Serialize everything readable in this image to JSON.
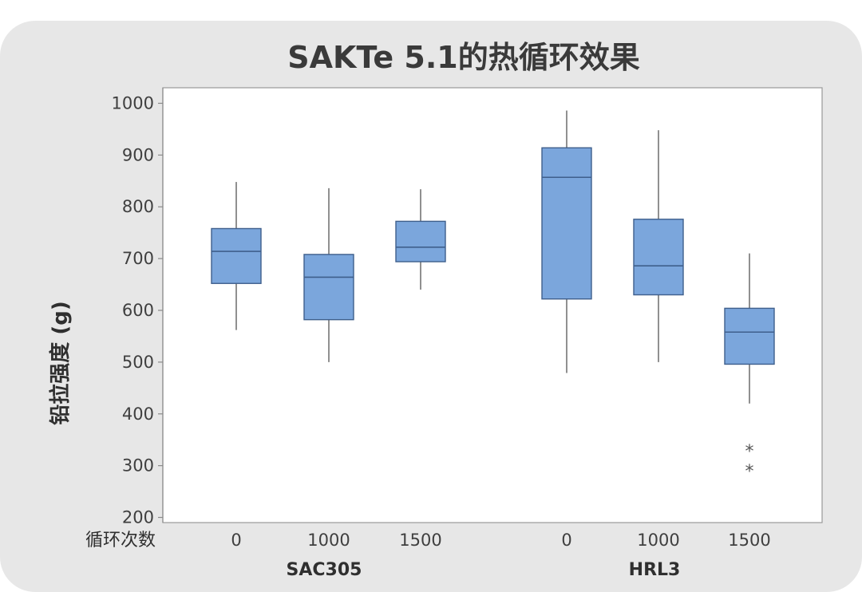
{
  "chart_data": {
    "type": "box",
    "title": "SAKTe 5.1的热循环效果",
    "ylabel": "铅拉强度 (g)",
    "xlabel": "循环次数",
    "ylim": [
      190,
      1030
    ],
    "yticks": [
      200,
      300,
      400,
      500,
      600,
      700,
      800,
      900,
      1000
    ],
    "box_color": "#7ba6dc",
    "groups": [
      {
        "name": "SAC305",
        "boxes": [
          {
            "label": "0",
            "min": 562,
            "q1": 652,
            "median": 714,
            "q3": 758,
            "max": 848,
            "outliers": []
          },
          {
            "label": "1000",
            "min": 500,
            "q1": 582,
            "median": 664,
            "q3": 708,
            "max": 836,
            "outliers": []
          },
          {
            "label": "1500",
            "min": 640,
            "q1": 694,
            "median": 722,
            "q3": 772,
            "max": 834,
            "outliers": []
          }
        ]
      },
      {
        "name": "HRL3",
        "boxes": [
          {
            "label": "0",
            "min": 479,
            "q1": 622,
            "median": 857,
            "q3": 914,
            "max": 986,
            "outliers": []
          },
          {
            "label": "1000",
            "min": 500,
            "q1": 630,
            "median": 686,
            "q3": 776,
            "max": 948,
            "outliers": []
          },
          {
            "label": "1500",
            "min": 420,
            "q1": 496,
            "median": 558,
            "q3": 604,
            "max": 710,
            "outliers": [
              330,
              292
            ]
          }
        ]
      }
    ]
  }
}
